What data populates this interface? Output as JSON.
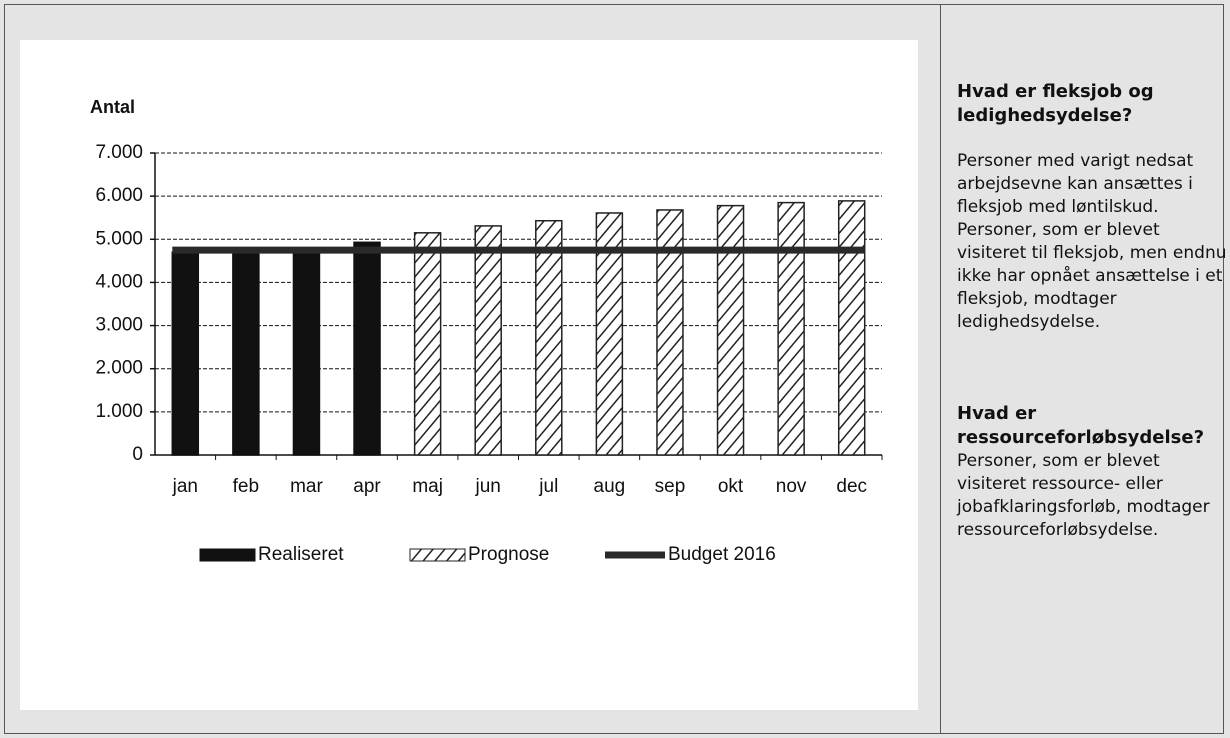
{
  "chart_data": {
    "type": "bar",
    "y_label": "Antal",
    "categories": [
      "jan",
      "feb",
      "mar",
      "apr",
      "maj",
      "jun",
      "jul",
      "aug",
      "sep",
      "okt",
      "nov",
      "dec"
    ],
    "series": [
      {
        "name": "Realiseret",
        "type": "bar",
        "color": "#111111",
        "values": [
          4700,
          4720,
          4720,
          4930,
          null,
          null,
          null,
          null,
          null,
          null,
          null,
          null
        ]
      },
      {
        "name": "Prognose",
        "type": "bar",
        "color": "#222222",
        "pattern": "hatch",
        "values": [
          null,
          null,
          null,
          null,
          5150,
          5310,
          5430,
          5610,
          5680,
          5780,
          5850,
          5890
        ]
      },
      {
        "name": "Budget 2016",
        "type": "line",
        "color": "#2a2a2a",
        "values": [
          4750,
          4750,
          4750,
          4750,
          4750,
          4750,
          4750,
          4750,
          4750,
          4750,
          4750,
          4750
        ]
      }
    ],
    "ylim": [
      0,
      7000
    ],
    "yticks": [
      0,
      {
        "value": 1000,
        "label": "1.000"
      },
      {
        "value": 2000,
        "label": "2.000"
      },
      {
        "value": 3000,
        "label": "3.000"
      },
      {
        "value": 4000,
        "label": "4.000"
      },
      {
        "value": 5000,
        "label": "5.000"
      },
      {
        "value": 6000,
        "label": "6.000"
      },
      {
        "value": 7000,
        "label": "7.000"
      }
    ],
    "grid": true,
    "legend": "bottom"
  },
  "sidebar": {
    "sections": [
      {
        "heading": "Hvad er fleksjob og ledighedsydelse?",
        "text": "Personer med varigt nedsat arbejdsevne kan ansættes i fleksjob med løntilskud. Personer, som er blevet visiteret til fleksjob, men endnu ikke har opnået ansættelse i et fleksjob, modtager ledighedsydelse."
      },
      {
        "heading": "Hvad er ressourceforløbsydelse?",
        "text": "Personer, som er blevet visiteret ressource- eller jobafklaringsforløb, modtager ressourceforløbsydelse."
      }
    ]
  }
}
